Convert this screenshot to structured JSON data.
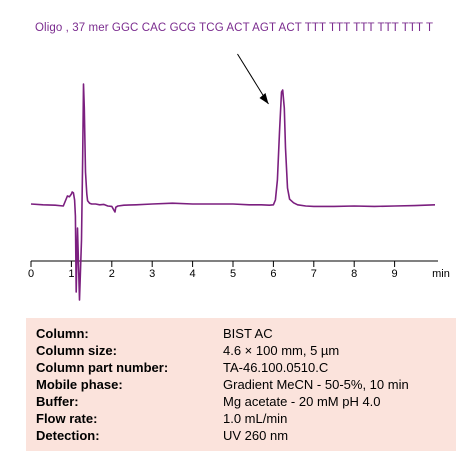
{
  "title": "Oligo , 37 mer GGC CAC GCG TCG ACT AGT ACT TTT TTT TTT TTT TTT T",
  "colors": {
    "trace": "#7b1f7f",
    "title": "#7b2c8f",
    "panel": "#fbe3dc",
    "axis": "#000000"
  },
  "chart_data": {
    "type": "line",
    "title": "Oligo , 37 mer GGC CAC GCG TCG ACT AGT ACT TTT TTT TTT TTT TTT T",
    "xlabel": "min",
    "ylabel": "",
    "xlim": [
      0,
      10
    ],
    "ylim": [
      -2.5,
      3.3
    ],
    "x_ticks": [
      0,
      1,
      2,
      3,
      4,
      5,
      6,
      7,
      8,
      9
    ],
    "x_tick_labels": [
      "0",
      "1",
      "2",
      "3",
      "4",
      "5",
      "6",
      "7",
      "8",
      "9"
    ],
    "x_axis_unit_label": "min",
    "grid": false,
    "annotation": {
      "type": "arrow",
      "points_to_x": 6.2
    },
    "series": [
      {
        "x": [
          0.0,
          0.3,
          0.6,
          0.8,
          0.9,
          0.95,
          1.0,
          1.02,
          1.05,
          1.08,
          1.1,
          1.12,
          1.15,
          1.2,
          1.25,
          1.28,
          1.3,
          1.32,
          1.35,
          1.38,
          1.4,
          1.45,
          1.5,
          1.6,
          1.7,
          1.8,
          1.9,
          2.0,
          2.05,
          2.08,
          2.1,
          2.15,
          2.3,
          2.6,
          3.0,
          3.5,
          4.0,
          4.5,
          5.0,
          5.4,
          5.7,
          5.9,
          6.0,
          6.05,
          6.1,
          6.15,
          6.2,
          6.23,
          6.27,
          6.3,
          6.35,
          6.4,
          6.5,
          6.6,
          6.8,
          7.0,
          7.5,
          8.0,
          8.5,
          9.0,
          9.5,
          10.0
        ],
        "y": [
          0.0,
          -0.02,
          -0.03,
          -0.05,
          0.2,
          0.18,
          0.25,
          0.3,
          0.28,
          0.1,
          -0.3,
          -2.2,
          -0.6,
          -2.4,
          -0.9,
          1.2,
          3.0,
          2.4,
          0.8,
          0.25,
          0.08,
          0.02,
          0.0,
          0.0,
          -0.02,
          -0.01,
          -0.05,
          -0.06,
          -0.15,
          -0.2,
          -0.08,
          -0.05,
          -0.03,
          -0.02,
          0.0,
          0.02,
          0.0,
          0.0,
          0.0,
          -0.02,
          -0.02,
          -0.03,
          -0.02,
          0.1,
          0.6,
          1.8,
          2.8,
          2.85,
          2.4,
          1.4,
          0.4,
          0.12,
          0.03,
          -0.02,
          -0.05,
          -0.06,
          -0.06,
          -0.05,
          -0.06,
          -0.05,
          -0.04,
          -0.02
        ]
      }
    ]
  },
  "conditions": [
    {
      "label": "Column:",
      "value": "BIST AC"
    },
    {
      "label": "Column size:",
      "value": "4.6 × 100 mm, 5 µm"
    },
    {
      "label": "Column part number:",
      "value": "TA-46.100.0510.C"
    },
    {
      "label": "Mobile phase:",
      "value": "Gradient  MeCN  - 50-5%, 10 min"
    },
    {
      "label": "Buffer:",
      "value": "Mg acetate - 20 mM  pH 4.0"
    },
    {
      "label": "Flow rate:",
      "value": "1.0 mL/min"
    },
    {
      "label": "Detection:",
      "value": "UV 260 nm"
    }
  ]
}
